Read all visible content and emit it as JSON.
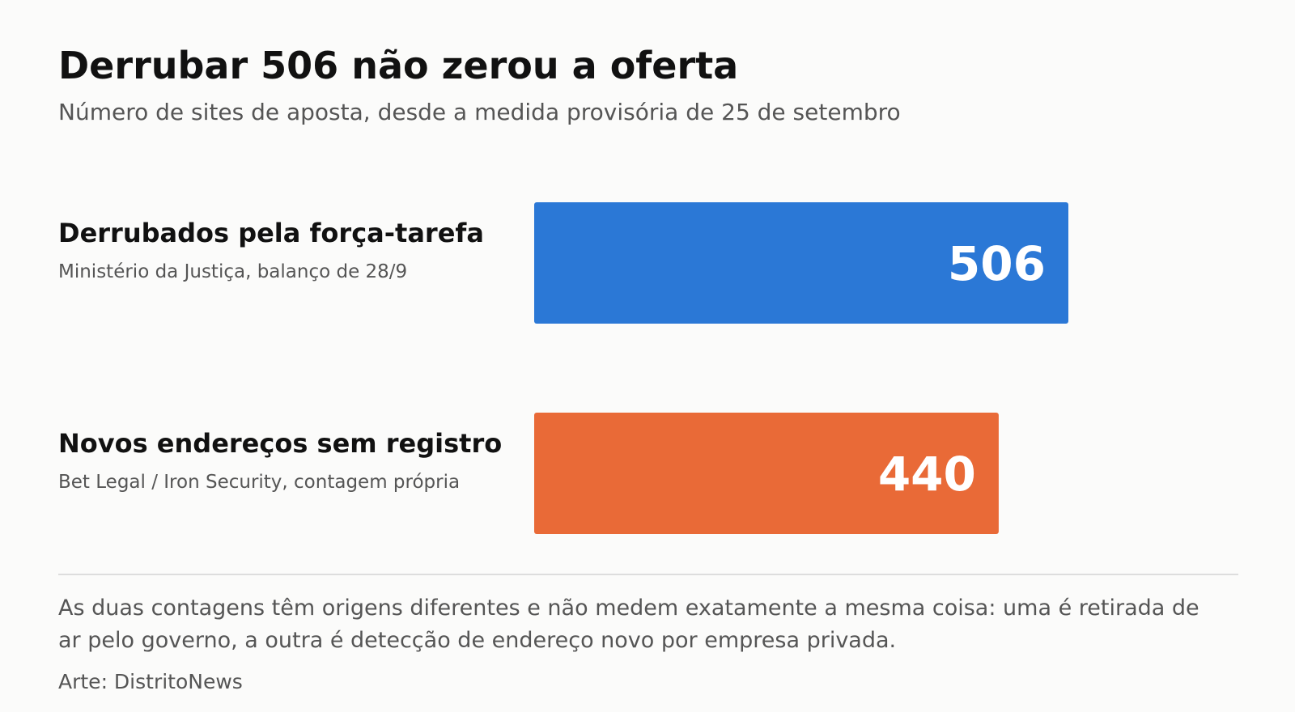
{
  "header": {
    "title": "Derrubar 506 não zerou a oferta",
    "subtitle": "Número de sites de aposta, desde a medida provisória de 25 de setembro"
  },
  "chart_data": {
    "type": "bar",
    "orientation": "horizontal",
    "title": "Derrubar 506 não zerou a oferta",
    "subtitle": "Número de sites de aposta, desde a medida provisória de 25 de setembro",
    "categories": [
      "Derrubados pela força-tarefa",
      "Novos endereços sem registro"
    ],
    "sources": [
      "Ministério da Justiça, balanço de 28/9",
      "Bet Legal / Iron Security, contagem própria"
    ],
    "values": [
      506,
      440
    ],
    "value_labels": [
      "506",
      "440"
    ],
    "colors": [
      "#2b78d6",
      "#e96a37"
    ],
    "xlim": [
      0,
      506
    ],
    "grid": false,
    "legend": "none"
  },
  "footer": {
    "note": "As duas contagens têm origens diferentes e não medem exatamente a mesma coisa: uma é retirada de ar pelo governo, a outra é detecção de endereço novo por empresa privada.",
    "credit": "Arte: DistritoNews"
  }
}
